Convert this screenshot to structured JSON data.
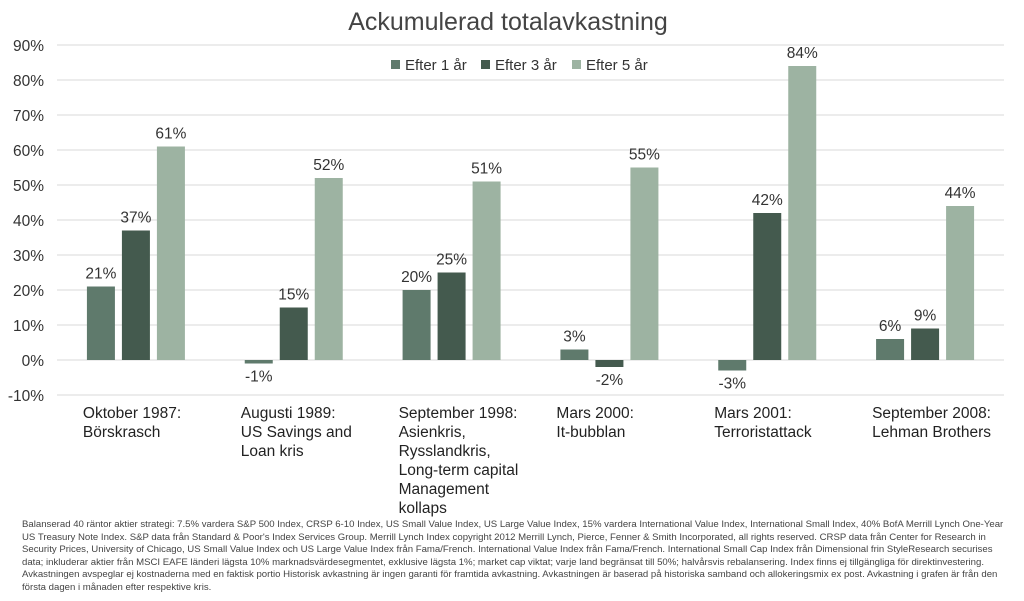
{
  "chart_data": {
    "type": "bar",
    "title": "Ackumulerad totalavkastning",
    "categories": [
      [
        "Oktober 1987:",
        "Börskrasch"
      ],
      [
        "Augusti 1989:",
        "US Savings and",
        "Loan kris"
      ],
      [
        "September 1998:",
        "Asienkris,",
        "Rysslandkris,",
        "Long-term capital",
        "Management",
        "kollaps"
      ],
      [
        "Mars 2000:",
        "It-bubblan"
      ],
      [
        "Mars 2001:",
        "Terroristattack"
      ],
      [
        "September 2008:",
        "Lehman Brothers"
      ]
    ],
    "series": [
      {
        "name": "Efter 1 år",
        "color": "#5f7a6c",
        "values": [
          21,
          -1,
          20,
          3,
          -3,
          6
        ]
      },
      {
        "name": "Efter 3 år",
        "color": "#445a4e",
        "values": [
          37,
          15,
          25,
          -2,
          42,
          9
        ]
      },
      {
        "name": "Efter 5 år",
        "color": "#9db3a2",
        "values": [
          61,
          52,
          51,
          55,
          84,
          44
        ]
      }
    ],
    "ylim": [
      -10,
      90
    ],
    "yticks": [
      -10,
      0,
      10,
      20,
      30,
      40,
      50,
      60,
      70,
      80,
      90
    ],
    "value_suffix": "%",
    "grid": true,
    "legend": "top-center",
    "xlabel": "",
    "ylabel": ""
  },
  "footnote": "Balanserad 40 räntor aktier strategi: 7.5% vardera S&P 500 Index, CRSP 6-10 Index, US Small Value Index, US Large Value Index, 15% vardera International Value Index, International Small Index, 40% BofA Merrill Lynch One-Year US Treasury Note Index. S&P data från Standard & Poor's Index Services Group. Merrill Lynch Index copyright 2012 Merrill Lynch, Pierce, Fenner & Smith Incorporated, all rights reserved. CRSP data från Center for Research in Security Prices, University of Chicago, US Small Value Index och US Large Value Index från Fama/French. International Value Index från Fama/French. International Small Cap Index från Dimensional frin StyleResearch securises data; inkluderar aktier från MSCI EAFE länderi lägsta 10% marknadsvärdesegmentet, exklusive lägsta 1%; market cap viktat; varje land begränsat till 50%; halvårsvis rebalansering. Index finns ej tillgängliga för direktinvestering. Avkastningen avspeglar ej kostnaderna med en faktisk portio Historisk avkastning är ingen garanti för framtida avkastning. Avkastningen är baserad på historiska samband och allokeringsmix ex post. Avkastning i grafen är från den första dagen i månaden efter respektive kris."
}
